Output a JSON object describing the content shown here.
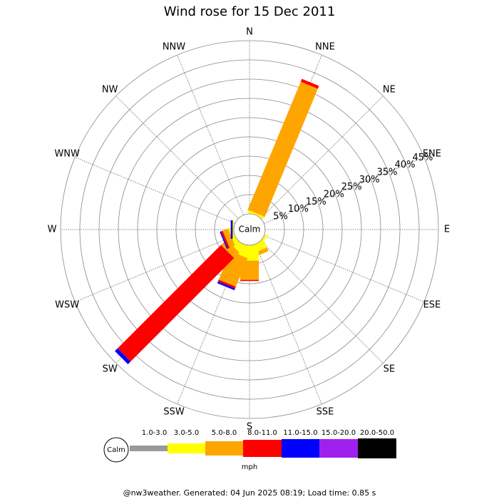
{
  "chart_data": {
    "type": "windrose",
    "title": "Wind rose for 15 Dec 2011",
    "calm_label": "Calm",
    "units": "mph",
    "footer": "@nw3weather. Generated: 04 Jun 2025 08:19; Load time: 0.85 s",
    "categories": [
      "N",
      "NNE",
      "NE",
      "ENE",
      "E",
      "ESE",
      "SE",
      "SSE",
      "S",
      "SSW",
      "SW",
      "WSW",
      "W",
      "WNW",
      "NW",
      "NNW"
    ],
    "rlim": [
      0,
      45
    ],
    "rticks": [
      {
        "value": 5,
        "label": "5%"
      },
      {
        "value": 10,
        "label": "10%"
      },
      {
        "value": 15,
        "label": "15%"
      },
      {
        "value": 20,
        "label": "20%"
      },
      {
        "value": 25,
        "label": "25%"
      },
      {
        "value": 30,
        "label": "30%"
      },
      {
        "value": 35,
        "label": "35%"
      },
      {
        "value": 40,
        "label": "40%"
      },
      {
        "value": 45,
        "label": "45%"
      }
    ],
    "series": [
      {
        "name": "1.0-3.0",
        "color": "#999999",
        "values": [
          0,
          0,
          0,
          0,
          0,
          0,
          0,
          0,
          0,
          0,
          0,
          0,
          0,
          0,
          0,
          0
        ]
      },
      {
        "name": "3.0-5.0",
        "color": "#ffff00",
        "values": [
          0,
          0.5,
          0,
          0,
          0,
          0,
          0.5,
          2,
          4,
          3,
          2,
          1,
          0.3,
          0,
          0,
          0
        ]
      },
      {
        "name": "5.0-8.0",
        "color": "#ffa500",
        "values": [
          0,
          36,
          0,
          0,
          0,
          0,
          0,
          1,
          5,
          8,
          2,
          1.5,
          0,
          0,
          0,
          0
        ]
      },
      {
        "name": "8.0-11.0",
        "color": "#ff0000",
        "values": [
          0,
          0.8,
          0,
          0,
          0,
          0,
          0,
          0,
          0.3,
          0.5,
          38,
          0.5,
          0,
          0,
          0,
          0
        ]
      },
      {
        "name": "11.0-15.0",
        "color": "#0000ff",
        "values": [
          0,
          0,
          0,
          0,
          0,
          0,
          0,
          0,
          0,
          0.5,
          1,
          0.3,
          0.5,
          0,
          0,
          0
        ]
      },
      {
        "name": "15.0-20.0",
        "color": "#a020f0",
        "values": [
          0,
          0,
          0,
          0,
          0,
          0,
          0,
          0,
          0,
          0,
          0,
          0,
          0,
          0,
          0,
          0
        ]
      },
      {
        "name": "20.0-50.0",
        "color": "#000000",
        "values": [
          0,
          0,
          0,
          0,
          0,
          0,
          0,
          0,
          0,
          0,
          0,
          0,
          0,
          0,
          0,
          0
        ]
      }
    ]
  }
}
